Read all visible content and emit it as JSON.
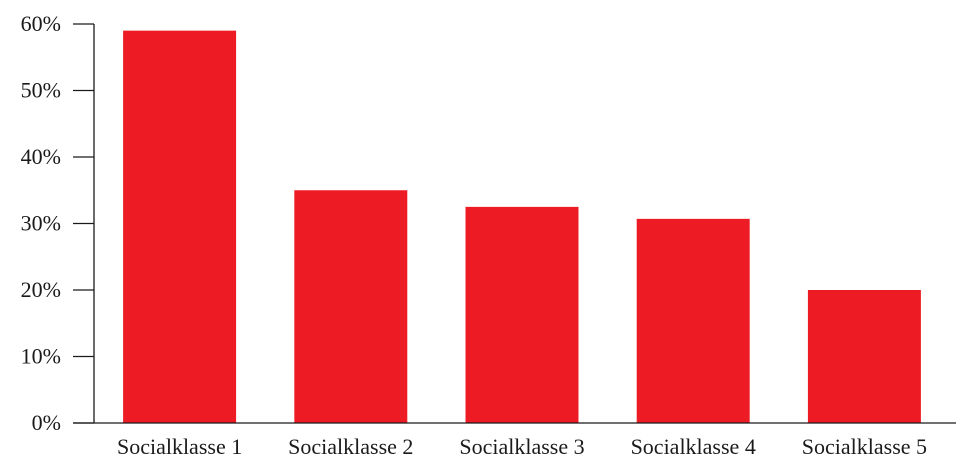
{
  "chart_data": {
    "type": "bar",
    "title": "",
    "xlabel": "",
    "ylabel": "",
    "categories": [
      "Socialklasse 1",
      "Socialklasse 2",
      "Socialklasse 3",
      "Socialklasse 4",
      "Socialklasse 5"
    ],
    "values": [
      59,
      35,
      32.5,
      30.7,
      20
    ],
    "ylim": [
      0,
      60
    ],
    "yticks": [
      0,
      10,
      20,
      30,
      40,
      50,
      60
    ],
    "ytick_labels": [
      "0%",
      "10%",
      "20%",
      "30%",
      "40%",
      "50%",
      "60%"
    ],
    "bar_color": "#ed1c24",
    "grid": false,
    "legend": "none"
  }
}
